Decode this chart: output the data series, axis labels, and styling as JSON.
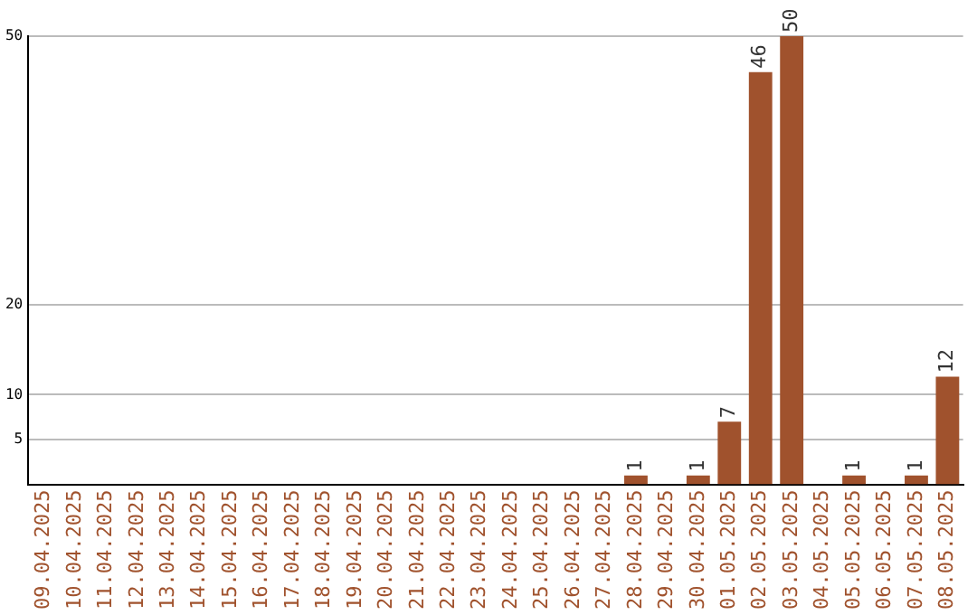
{
  "chart_data": {
    "type": "bar",
    "categories": [
      "09.04.2025",
      "10.04.2025",
      "11.04.2025",
      "12.04.2025",
      "13.04.2025",
      "14.04.2025",
      "15.04.2025",
      "16.04.2025",
      "17.04.2025",
      "18.04.2025",
      "19.04.2025",
      "20.04.2025",
      "21.04.2025",
      "22.04.2025",
      "23.04.2025",
      "24.04.2025",
      "25.04.2025",
      "26.04.2025",
      "27.04.2025",
      "28.04.2025",
      "29.04.2025",
      "30.04.2025",
      "01.05.2025",
      "02.05.2025",
      "03.05.2025",
      "04.05.2025",
      "05.05.2025",
      "06.05.2025",
      "07.05.2025",
      "08.05.2025"
    ],
    "values": [
      0,
      0,
      0,
      0,
      0,
      0,
      0,
      0,
      0,
      0,
      0,
      0,
      0,
      0,
      0,
      0,
      0,
      0,
      0,
      1,
      0,
      1,
      7,
      46,
      50,
      0,
      1,
      0,
      1,
      12
    ],
    "value_labels": [
      null,
      null,
      null,
      null,
      null,
      null,
      null,
      null,
      null,
      null,
      null,
      null,
      null,
      null,
      null,
      null,
      null,
      null,
      null,
      "1",
      null,
      "1",
      "7",
      "46",
      "50",
      null,
      "1",
      null,
      "1",
      "12"
    ],
    "color": "#a0522d",
    "ylim": [
      0,
      50
    ],
    "yticks": [
      5,
      10,
      20,
      50
    ],
    "grid": "y",
    "legend": false
  }
}
